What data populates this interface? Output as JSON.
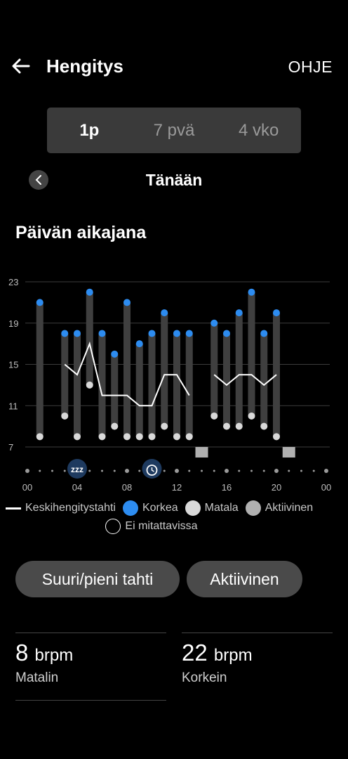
{
  "header": {
    "title": "Hengitys",
    "help_label": "OHJE"
  },
  "tabs": [
    {
      "label": "1p",
      "active": true
    },
    {
      "label": "7 pvä",
      "active": false
    },
    {
      "label": "4 vko",
      "active": false
    }
  ],
  "date_nav": {
    "label": "Tänään"
  },
  "section": {
    "title": "Päivän aikajana"
  },
  "chart_data": {
    "type": "range-bar-with-line",
    "ylim": [
      7,
      23
    ],
    "yticks": [
      "7",
      "11",
      "15",
      "19",
      "23"
    ],
    "xticks": [
      "00",
      "04",
      "08",
      "12",
      "16",
      "20",
      "00"
    ],
    "colors": {
      "high": "#2d8cf0",
      "low": "#d9d9d9",
      "bar": "#3f3f3f",
      "line": "#ffffff",
      "active": "#b0b0b0"
    },
    "ranges": [
      {
        "hour": 1,
        "low": 8,
        "high": 21
      },
      {
        "hour": 3,
        "low": 10,
        "high": 18
      },
      {
        "hour": 4,
        "low": 8,
        "high": 18
      },
      {
        "hour": 5,
        "low": 13,
        "high": 22
      },
      {
        "hour": 6,
        "low": 8,
        "high": 18
      },
      {
        "hour": 7,
        "low": 9,
        "high": 16
      },
      {
        "hour": 8,
        "low": 8,
        "high": 21
      },
      {
        "hour": 9,
        "low": 8,
        "high": 17
      },
      {
        "hour": 10,
        "low": 8,
        "high": 18
      },
      {
        "hour": 11,
        "low": 9,
        "high": 20
      },
      {
        "hour": 12,
        "low": 8,
        "high": 18
      },
      {
        "hour": 13,
        "low": 8,
        "high": 18
      },
      {
        "hour": 15,
        "low": 10,
        "high": 19
      },
      {
        "hour": 16,
        "low": 9,
        "high": 18
      },
      {
        "hour": 17,
        "low": 9,
        "high": 20
      },
      {
        "hour": 18,
        "low": 10,
        "high": 22
      },
      {
        "hour": 19,
        "low": 9,
        "high": 18
      },
      {
        "hour": 20,
        "low": 8,
        "high": 20
      }
    ],
    "average_segments": [
      [
        {
          "hour": 3,
          "value": 15
        },
        {
          "hour": 4,
          "value": 14
        },
        {
          "hour": 5,
          "value": 17
        },
        {
          "hour": 6,
          "value": 12
        },
        {
          "hour": 7,
          "value": 12
        },
        {
          "hour": 8,
          "value": 12
        },
        {
          "hour": 9,
          "value": 11
        },
        {
          "hour": 10,
          "value": 11
        },
        {
          "hour": 11,
          "value": 14
        },
        {
          "hour": 12,
          "value": 14
        },
        {
          "hour": 13,
          "value": 12
        }
      ],
      [
        {
          "hour": 15,
          "value": 14
        },
        {
          "hour": 16,
          "value": 13
        },
        {
          "hour": 17,
          "value": 14
        },
        {
          "hour": 18,
          "value": 14
        },
        {
          "hour": 19,
          "value": 13
        },
        {
          "hour": 20,
          "value": 14
        }
      ]
    ],
    "active_hours": [
      14,
      21
    ],
    "sleep_marker_hour": 4,
    "alarm_marker_hour": 10
  },
  "legend": {
    "average": "Keskihengitystahti",
    "high": "Korkea",
    "low": "Matala",
    "active": "Aktiivinen",
    "unmeasurable": "Ei mitattavissa"
  },
  "chips": {
    "rate": "Suuri/pieni tahti",
    "active": "Aktiivinen"
  },
  "stats": {
    "lowest": {
      "value": "8",
      "unit": "brpm",
      "label": "Matalin"
    },
    "highest": {
      "value": "22",
      "unit": "brpm",
      "label": "Korkein"
    }
  }
}
